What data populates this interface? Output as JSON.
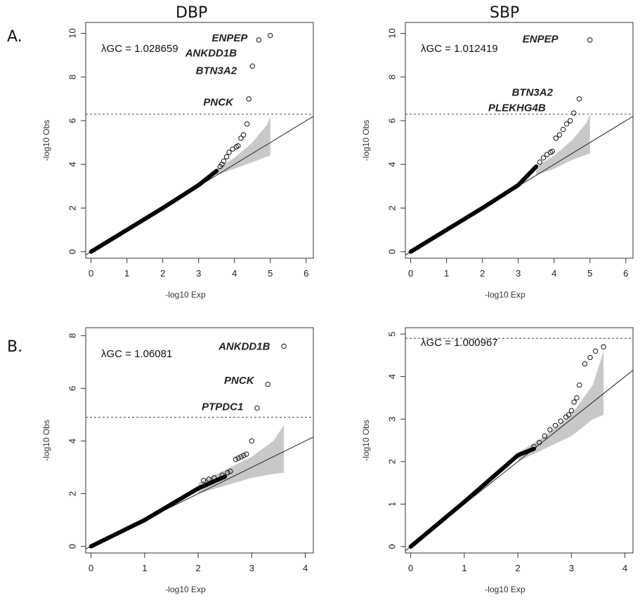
{
  "column_titles": [
    "DBP",
    "SBP"
  ],
  "row_labels": [
    "A.",
    "B."
  ],
  "chart_data": [
    {
      "id": "A-DBP",
      "type": "scatter",
      "title": "",
      "xlabel": "-log10 Exp",
      "ylabel": "-log10 Obs",
      "xlim": [
        -0.15,
        6.2
      ],
      "ylim": [
        -0.3,
        10.5
      ],
      "xticks": [
        0,
        1,
        2,
        3,
        4,
        5,
        6
      ],
      "yticks": [
        0,
        2,
        4,
        6,
        8,
        10
      ],
      "lambda_text": "λGC = 1.028659",
      "threshold": 6.3,
      "bulk_line": {
        "x": [
          0,
          2.0,
          3.0,
          3.5
        ],
        "y": [
          0,
          2.0,
          3.05,
          3.7
        ]
      },
      "band": {
        "x": [
          3.5,
          4.0,
          4.5,
          4.9,
          5.0
        ],
        "upper": [
          3.8,
          4.3,
          5.0,
          5.8,
          6.2
        ],
        "lower": [
          3.5,
          3.8,
          4.1,
          4.35,
          4.4
        ]
      },
      "reference_slope": 1.0,
      "points": [
        {
          "x": 3.6,
          "y": 3.9
        },
        {
          "x": 3.65,
          "y": 4.0
        },
        {
          "x": 3.7,
          "y": 4.15
        },
        {
          "x": 3.78,
          "y": 4.35
        },
        {
          "x": 3.85,
          "y": 4.55
        },
        {
          "x": 3.95,
          "y": 4.7
        },
        {
          "x": 4.05,
          "y": 4.8
        },
        {
          "x": 4.1,
          "y": 4.85
        },
        {
          "x": 4.18,
          "y": 5.2
        },
        {
          "x": 4.25,
          "y": 5.35
        },
        {
          "x": 4.35,
          "y": 5.85
        },
        {
          "x": 4.4,
          "y": 7.0
        },
        {
          "x": 4.5,
          "y": 8.5
        },
        {
          "x": 4.68,
          "y": 9.7
        },
        {
          "x": 5.0,
          "y": 9.9
        }
      ],
      "annotations": [
        {
          "text": "ENPEP",
          "x": 4.6,
          "y": 9.8
        },
        {
          "text": "ANKDD1B",
          "x": 4.3,
          "y": 9.1
        },
        {
          "text": "BTN3A2",
          "x": 4.3,
          "y": 8.3
        },
        {
          "text": "PNCK",
          "x": 4.2,
          "y": 6.85
        }
      ]
    },
    {
      "id": "A-SBP",
      "type": "scatter",
      "title": "",
      "xlabel": "-log10 Exp",
      "ylabel": "-log10 Obs",
      "xlim": [
        -0.15,
        6.2
      ],
      "ylim": [
        -0.3,
        10.5
      ],
      "xticks": [
        0,
        1,
        2,
        3,
        4,
        5,
        6
      ],
      "yticks": [
        0,
        2,
        4,
        6,
        8,
        10
      ],
      "lambda_text": "λGC = 1.012419",
      "threshold": 6.3,
      "bulk_line": {
        "x": [
          0,
          2.0,
          3.0,
          3.5
        ],
        "y": [
          0,
          2.0,
          3.05,
          3.9
        ]
      },
      "band": {
        "x": [
          3.5,
          4.0,
          4.5,
          4.9,
          5.0
        ],
        "upper": [
          3.9,
          4.4,
          5.1,
          5.9,
          6.3
        ],
        "lower": [
          3.5,
          3.8,
          4.2,
          4.45,
          4.5
        ]
      },
      "reference_slope": 1.0,
      "points": [
        {
          "x": 3.6,
          "y": 4.1
        },
        {
          "x": 3.7,
          "y": 4.3
        },
        {
          "x": 3.8,
          "y": 4.45
        },
        {
          "x": 3.9,
          "y": 4.55
        },
        {
          "x": 3.95,
          "y": 4.6
        },
        {
          "x": 4.05,
          "y": 5.2
        },
        {
          "x": 4.15,
          "y": 5.35
        },
        {
          "x": 4.25,
          "y": 5.6
        },
        {
          "x": 4.35,
          "y": 5.85
        },
        {
          "x": 4.45,
          "y": 6.0
        },
        {
          "x": 4.55,
          "y": 6.35
        },
        {
          "x": 4.7,
          "y": 7.0
        },
        {
          "x": 5.0,
          "y": 9.7
        }
      ],
      "annotations": [
        {
          "text": "ENPEP",
          "x": 4.35,
          "y": 9.75
        },
        {
          "text": "BTN3A2",
          "x": 4.2,
          "y": 7.3
        },
        {
          "text": "PLEKHG4B",
          "x": 4.0,
          "y": 6.6
        }
      ]
    },
    {
      "id": "B-DBP",
      "type": "scatter",
      "title": "",
      "xlabel": "-log10 Exp",
      "ylabel": "-log10 Obs",
      "xlim": [
        -0.1,
        4.15
      ],
      "ylim": [
        -0.25,
        8.3
      ],
      "xticks": [
        0,
        1,
        2,
        3,
        4
      ],
      "yticks": [
        0,
        2,
        4,
        6,
        8
      ],
      "lambda_text": "λGC = 1.06081",
      "threshold": 4.9,
      "bulk_line": {
        "x": [
          0,
          1.0,
          2.0,
          2.5
        ],
        "y": [
          0,
          1.0,
          2.2,
          2.65
        ]
      },
      "band": {
        "x": [
          2.0,
          2.5,
          3.0,
          3.4,
          3.6
        ],
        "upper": [
          2.4,
          2.9,
          3.4,
          4.0,
          4.6
        ],
        "lower": [
          2.0,
          2.3,
          2.6,
          2.75,
          2.8
        ]
      },
      "reference_slope": 1.0,
      "points": [
        {
          "x": 2.1,
          "y": 2.5
        },
        {
          "x": 2.2,
          "y": 2.55
        },
        {
          "x": 2.3,
          "y": 2.6
        },
        {
          "x": 2.45,
          "y": 2.7
        },
        {
          "x": 2.55,
          "y": 2.8
        },
        {
          "x": 2.6,
          "y": 2.85
        },
        {
          "x": 2.7,
          "y": 3.3
        },
        {
          "x": 2.75,
          "y": 3.35
        },
        {
          "x": 2.8,
          "y": 3.4
        },
        {
          "x": 2.85,
          "y": 3.45
        },
        {
          "x": 2.9,
          "y": 3.5
        },
        {
          "x": 3.0,
          "y": 4.0
        },
        {
          "x": 3.1,
          "y": 5.25
        },
        {
          "x": 3.3,
          "y": 6.15
        },
        {
          "x": 3.6,
          "y": 7.6
        }
      ],
      "annotations": [
        {
          "text": "ANKDD1B",
          "x": 3.5,
          "y": 7.6
        },
        {
          "text": "PNCK",
          "x": 3.2,
          "y": 6.3
        },
        {
          "text": "PTPDC1",
          "x": 3.0,
          "y": 5.3
        }
      ]
    },
    {
      "id": "B-SBP",
      "type": "scatter",
      "title": "",
      "xlabel": "-log10 Exp",
      "ylabel": "-log10 Obs",
      "xlim": [
        -0.1,
        4.15
      ],
      "ylim": [
        -0.15,
        5.15
      ],
      "xticks": [
        0,
        1,
        2,
        3,
        4
      ],
      "yticks": [
        0,
        1,
        2,
        3,
        4,
        5
      ],
      "lambda_text": "λGC = 1.000967",
      "threshold": 4.9,
      "bulk_line": {
        "x": [
          0,
          1.0,
          2.0,
          2.3
        ],
        "y": [
          0,
          1.05,
          2.15,
          2.3
        ]
      },
      "band": {
        "x": [
          2.0,
          2.5,
          3.0,
          3.4,
          3.6
        ],
        "upper": [
          2.2,
          2.6,
          3.1,
          3.8,
          4.6
        ],
        "lower": [
          2.0,
          2.3,
          2.6,
          3.0,
          3.1
        ]
      },
      "reference_slope": 1.0,
      "points": [
        {
          "x": 2.3,
          "y": 2.35
        },
        {
          "x": 2.4,
          "y": 2.45
        },
        {
          "x": 2.5,
          "y": 2.6
        },
        {
          "x": 2.6,
          "y": 2.75
        },
        {
          "x": 2.7,
          "y": 2.85
        },
        {
          "x": 2.8,
          "y": 2.95
        },
        {
          "x": 2.9,
          "y": 3.05
        },
        {
          "x": 2.95,
          "y": 3.1
        },
        {
          "x": 3.0,
          "y": 3.2
        },
        {
          "x": 3.05,
          "y": 3.4
        },
        {
          "x": 3.1,
          "y": 3.5
        },
        {
          "x": 3.15,
          "y": 3.8
        },
        {
          "x": 3.25,
          "y": 4.3
        },
        {
          "x": 3.35,
          "y": 4.45
        },
        {
          "x": 3.45,
          "y": 4.6
        },
        {
          "x": 3.6,
          "y": 4.7
        }
      ],
      "annotations": []
    }
  ]
}
